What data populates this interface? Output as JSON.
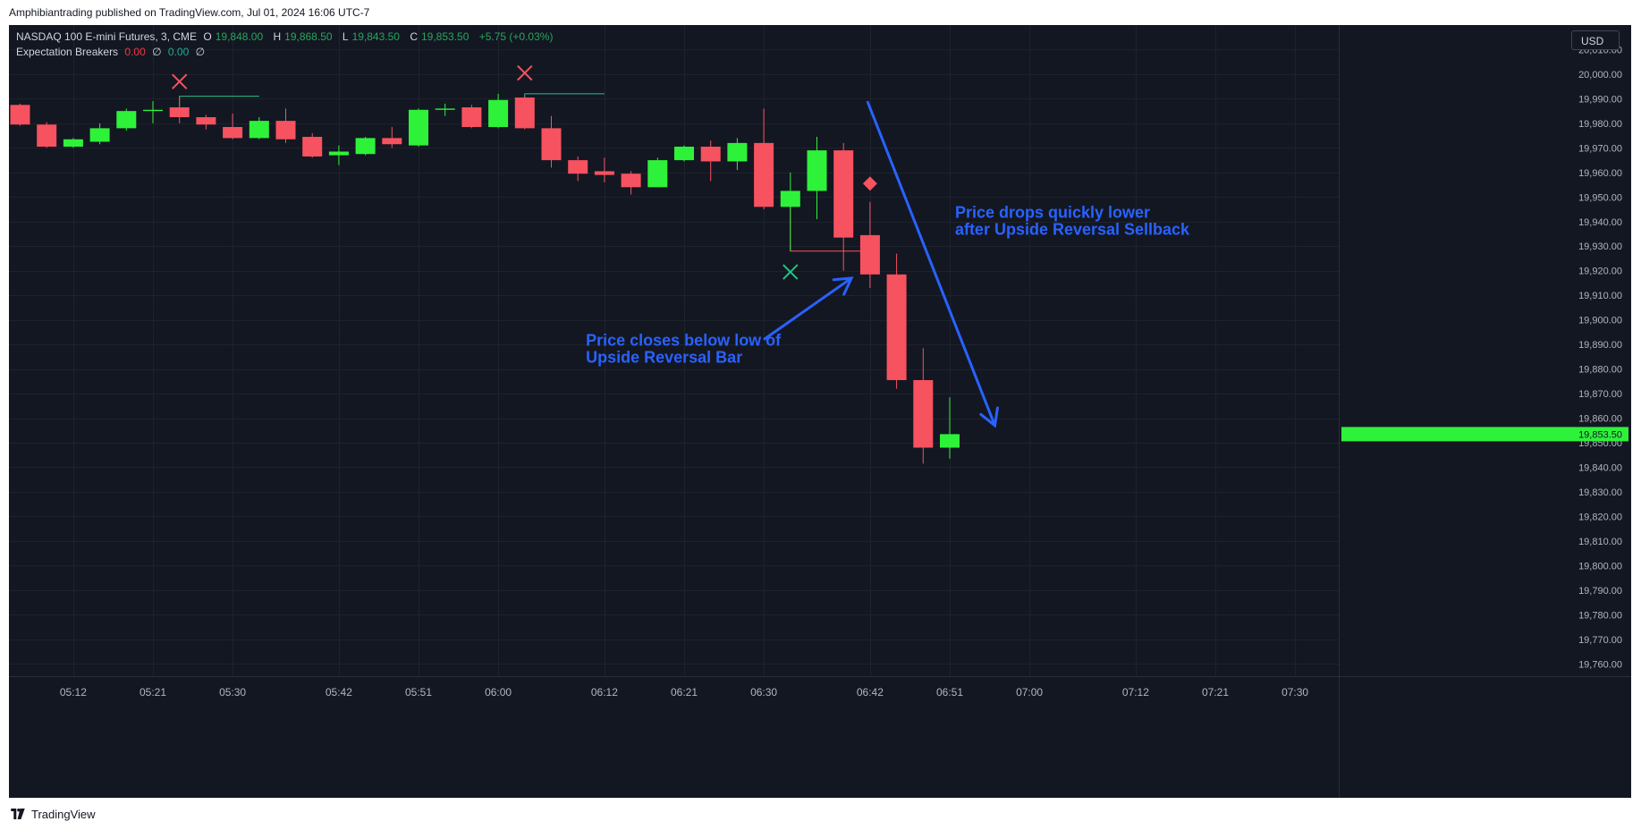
{
  "header": {
    "published": "Amphibiantrading published on TradingView.com, Jul 01, 2024 16:06 UTC-7"
  },
  "legend": {
    "symbol": "NASDAQ 100 E-mini Futures, 3, CME",
    "open_label": "O",
    "open": "19,848.00",
    "high_label": "H",
    "high": "19,868.50",
    "low_label": "L",
    "low": "19,843.50",
    "close_label": "C",
    "close": "19,853.50",
    "change": "+5.75 (+0.03%)",
    "indicator": "Expectation Breakers",
    "ind_val1": "0.00",
    "ind_sym1": "∅",
    "ind_val2": "0.00",
    "ind_sym2": "∅"
  },
  "currency": "USD",
  "footer": {
    "brand": "TradingView"
  },
  "colors": {
    "background": "#131722",
    "grid": "#1e222d",
    "up": "#2ef23a",
    "down": "#f7525f",
    "annotation": "#2962ff",
    "text": "#b2b5be"
  },
  "chart_data": {
    "type": "candlestick",
    "interval_minutes": 3,
    "y_ticks": [
      "20,010.00",
      "20,000.00",
      "19,990.00",
      "19,980.00",
      "19,970.00",
      "19,960.00",
      "19,950.00",
      "19,940.00",
      "19,930.00",
      "19,920.00",
      "19,910.00",
      "19,900.00",
      "19,890.00",
      "19,880.00",
      "19,870.00",
      "19,860.00",
      "19,850.00",
      "19,840.00",
      "19,830.00",
      "19,820.00",
      "19,810.00",
      "19,800.00",
      "19,790.00",
      "19,780.00",
      "19,770.00",
      "19,760.00"
    ],
    "ylim": [
      19755,
      20020
    ],
    "x_ticks": [
      {
        "label": "05:12",
        "bar": 2
      },
      {
        "label": "05:21",
        "bar": 5
      },
      {
        "label": "05:30",
        "bar": 8
      },
      {
        "label": "05:42",
        "bar": 12
      },
      {
        "label": "05:51",
        "bar": 15
      },
      {
        "label": "06:00",
        "bar": 18
      },
      {
        "label": "06:12",
        "bar": 22
      },
      {
        "label": "06:21",
        "bar": 25
      },
      {
        "label": "06:30",
        "bar": 28
      },
      {
        "label": "06:42",
        "bar": 32
      },
      {
        "label": "06:51",
        "bar": 35
      },
      {
        "label": "07:00",
        "bar": 38
      },
      {
        "label": "07:12",
        "bar": 42
      },
      {
        "label": "07:21",
        "bar": 45
      },
      {
        "label": "07:30",
        "bar": 48
      }
    ],
    "candles": [
      {
        "o": 19987.5,
        "h": 19988,
        "l": 19979,
        "c": 19979.5
      },
      {
        "o": 19979.5,
        "h": 19980.5,
        "l": 19970,
        "c": 19970.5
      },
      {
        "o": 19970.5,
        "h": 19974,
        "l": 19970,
        "c": 19973.5
      },
      {
        "o": 19972.5,
        "h": 19980,
        "l": 19971.5,
        "c": 19978
      },
      {
        "o": 19978,
        "h": 19986,
        "l": 19977,
        "c": 19985
      },
      {
        "o": 19985,
        "h": 19989,
        "l": 19980,
        "c": 19985.5
      },
      {
        "o": 19986.5,
        "h": 19991,
        "l": 19980,
        "c": 19982.5
      },
      {
        "o": 19982.5,
        "h": 19983.5,
        "l": 19977.5,
        "c": 19979.5
      },
      {
        "o": 19978.5,
        "h": 19984,
        "l": 19973.5,
        "c": 19974
      },
      {
        "o": 19974,
        "h": 19982.5,
        "l": 19973.5,
        "c": 19981
      },
      {
        "o": 19981,
        "h": 19986,
        "l": 19972,
        "c": 19973.5
      },
      {
        "o": 19974.5,
        "h": 19976,
        "l": 19966,
        "c": 19966.5
      },
      {
        "o": 19967,
        "h": 19971,
        "l": 19963,
        "c": 19968.5
      },
      {
        "o": 19967.5,
        "h": 19974.5,
        "l": 19967,
        "c": 19974
      },
      {
        "o": 19974,
        "h": 19978.5,
        "l": 19970,
        "c": 19971.5
      },
      {
        "o": 19971,
        "h": 19986,
        "l": 19970.5,
        "c": 19985.5
      },
      {
        "o": 19985.5,
        "h": 19988,
        "l": 19983,
        "c": 19986
      },
      {
        "o": 19986.5,
        "h": 19987.5,
        "l": 19978,
        "c": 19978.5
      },
      {
        "o": 19978.5,
        "h": 19992,
        "l": 19978,
        "c": 19989.5
      },
      {
        "o": 19990.5,
        "h": 19991,
        "l": 19977.5,
        "c": 19978
      },
      {
        "o": 19978,
        "h": 19983,
        "l": 19962,
        "c": 19965
      },
      {
        "o": 19965,
        "h": 19966.5,
        "l": 19956.5,
        "c": 19959.5
      },
      {
        "o": 19960.5,
        "h": 19966,
        "l": 19956,
        "c": 19959
      },
      {
        "o": 19959.5,
        "h": 19960.5,
        "l": 19951,
        "c": 19954
      },
      {
        "o": 19954,
        "h": 19966,
        "l": 19954,
        "c": 19965
      },
      {
        "o": 19965,
        "h": 19971,
        "l": 19964.5,
        "c": 19970.5
      },
      {
        "o": 19970.5,
        "h": 19973,
        "l": 19956.5,
        "c": 19964.5
      },
      {
        "o": 19964.5,
        "h": 19974,
        "l": 19961,
        "c": 19972
      },
      {
        "o": 19972,
        "h": 19986,
        "l": 19945,
        "c": 19946
      },
      {
        "o": 19946,
        "h": 19960,
        "l": 19928,
        "c": 19952.5
      },
      {
        "o": 19952.5,
        "h": 19974.5,
        "l": 19941,
        "c": 19969
      },
      {
        "o": 19969,
        "h": 19972,
        "l": 19920,
        "c": 19933.5
      },
      {
        "o": 19934.5,
        "h": 19948,
        "l": 19913,
        "c": 19918.5
      },
      {
        "o": 19918.5,
        "h": 19927,
        "l": 19872,
        "c": 19875.5
      },
      {
        "o": 19875.5,
        "h": 19888.5,
        "l": 19841.5,
        "c": 19848
      },
      {
        "o": 19848,
        "h": 19868.5,
        "l": 19843.5,
        "c": 19853.5
      }
    ],
    "last_price": "19,853.50",
    "markers": [
      {
        "type": "cross",
        "color": "red",
        "bar": 6,
        "y": 19997
      },
      {
        "type": "cross",
        "color": "red",
        "bar": 19,
        "y": 20000.5
      },
      {
        "type": "cross",
        "color": "green",
        "bar": 29,
        "y": 19919.5
      },
      {
        "type": "diamond",
        "color": "red",
        "bar": 32,
        "y": 19955.5
      }
    ],
    "level_lines": [
      {
        "color": "green",
        "y": 19991,
        "x_from_bar": 6,
        "x_to_bar": 9,
        "drop_to": 19987
      },
      {
        "color": "green",
        "y": 19992,
        "x_from_bar": 19,
        "x_to_bar": 22,
        "drop_to": 19990
      },
      {
        "color": "red",
        "y": 19928,
        "x_from_bar": 29,
        "x_to_bar": 32,
        "drop_from": 19952
      }
    ],
    "annotations": [
      {
        "lines": [
          "Price drops quickly lower",
          "after Upside Reversal Sellback"
        ],
        "bar": 35.2,
        "y": 19941.5
      },
      {
        "lines": [
          "Price closes below low of",
          "Upside Reversal Bar"
        ],
        "bar": 21.3,
        "y": 19889.5
      }
    ],
    "arrows": [
      {
        "from_bar": 31.9,
        "from_y": 19989,
        "to_bar": 36.7,
        "to_y": 19857
      },
      {
        "from_bar": 28,
        "from_y": 19892,
        "to_bar": 31.3,
        "to_y": 19917
      }
    ]
  }
}
